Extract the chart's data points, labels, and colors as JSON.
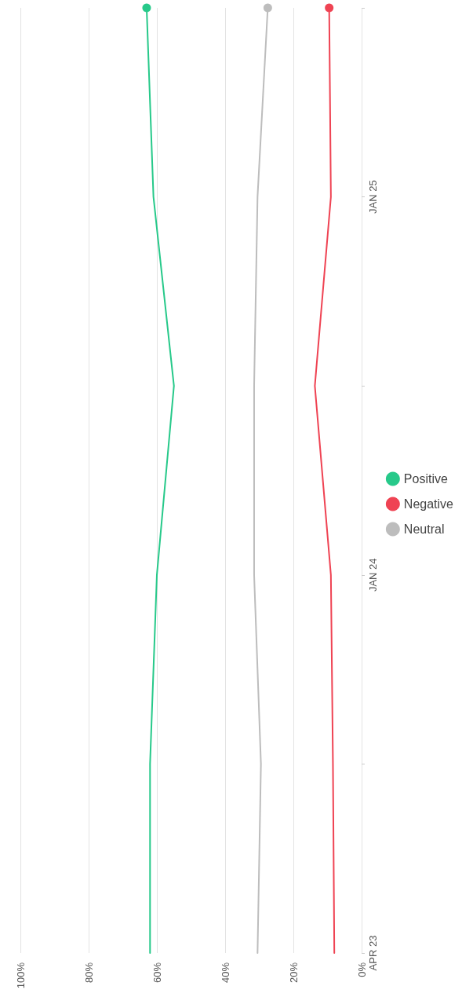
{
  "chart_data": {
    "type": "line",
    "orientation": "horizontal",
    "categories": [
      null,
      "JAN 25",
      null,
      "JAN 24",
      null,
      "APR 23"
    ],
    "series": [
      {
        "name": "Positive",
        "color": "#27c98a",
        "values": [
          63,
          61,
          55,
          60,
          62,
          62
        ]
      },
      {
        "name": "Negative",
        "color": "#ef4353",
        "values": [
          9.5,
          9,
          13.7,
          9,
          8.4,
          8
        ]
      },
      {
        "name": "Neutral",
        "color": "#bdbdbd",
        "values": [
          27.5,
          30.5,
          31.5,
          31.5,
          29.5,
          30.5
        ]
      }
    ],
    "xlim": [
      100,
      0
    ],
    "xticks": [
      {
        "value": 100,
        "label": "100%"
      },
      {
        "value": 80,
        "label": "80%"
      },
      {
        "value": 60,
        "label": "60%"
      },
      {
        "value": 40,
        "label": "40%"
      },
      {
        "value": 20,
        "label": "20%"
      },
      {
        "value": 0,
        "label": "0%"
      }
    ],
    "grid": "x",
    "legend": "right",
    "line_style": "solid"
  }
}
